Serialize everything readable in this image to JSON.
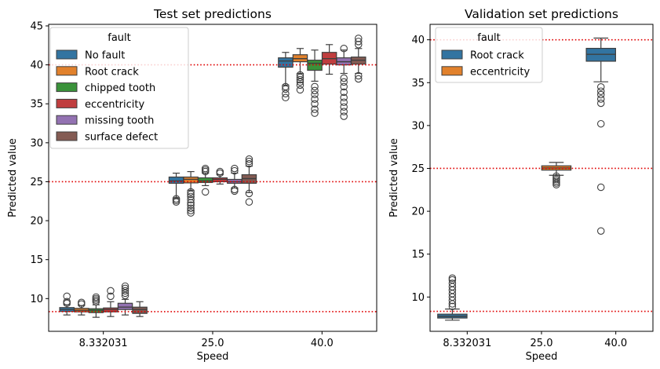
{
  "colors": {
    "No fault": "#3274a1",
    "Root crack": "#e1812c",
    "chipped tooth": "#3a923a",
    "eccentricity": "#c03d3e",
    "missing tooth": "#9372b2",
    "surface defect": "#845b53",
    "reference_line": "#e00000",
    "whisker": "#3f3f3f"
  },
  "chart_data": [
    {
      "type": "box",
      "title": "Test set predictions",
      "xlabel": "Speed",
      "ylabel": "Predicted value",
      "categories": [
        "8.332031",
        "25.0",
        "40.0"
      ],
      "ylim": [
        5.8,
        45.2
      ],
      "yticks": [
        10,
        15,
        20,
        25,
        30,
        35,
        40,
        45
      ],
      "reference_lines": [
        8.33,
        25.0,
        40.0
      ],
      "legend": {
        "title": "fault",
        "position": "top-left"
      },
      "series": [
        {
          "name": "No fault",
          "boxes": [
            {
              "whislo": 7.9,
              "q1": 8.35,
              "med": 8.6,
              "q3": 8.85,
              "whishi": 9.2,
              "fliers": [
                9.4,
                9.6,
                10.3
              ]
            },
            {
              "whislo": 22.9,
              "q1": 24.8,
              "med": 25.1,
              "q3": 25.6,
              "whishi": 26.1,
              "fliers": [
                22.4,
                22.6,
                22.8
              ]
            },
            {
              "whislo": 37.4,
              "q1": 39.7,
              "med": 40.5,
              "q3": 40.9,
              "whishi": 41.6,
              "fliers": [
                35.8,
                36.3,
                36.9,
                37.2
              ]
            }
          ]
        },
        {
          "name": "Root crack",
          "boxes": [
            {
              "whislo": 7.9,
              "q1": 8.3,
              "med": 8.5,
              "q3": 8.75,
              "whishi": 9.1,
              "fliers": [
                9.3,
                9.5
              ]
            },
            {
              "whislo": 23.9,
              "q1": 24.85,
              "med": 25.3,
              "q3": 25.6,
              "whishi": 26.3,
              "fliers": [
                21.0,
                21.3,
                21.6,
                22.0,
                22.3,
                22.7,
                23.1,
                23.4,
                23.7
              ]
            },
            {
              "whislo": 38.9,
              "q1": 40.4,
              "med": 40.8,
              "q3": 41.3,
              "whishi": 42.1,
              "fliers": [
                36.8,
                37.4,
                37.8,
                38.1,
                38.4,
                38.7
              ]
            }
          ]
        },
        {
          "name": "chipped tooth",
          "boxes": [
            {
              "whislo": 7.6,
              "q1": 8.2,
              "med": 8.5,
              "q3": 8.7,
              "whishi": 9.2,
              "fliers": [
                9.6,
                9.8,
                10.0,
                10.2
              ]
            },
            {
              "whislo": 24.5,
              "q1": 24.9,
              "med": 25.1,
              "q3": 25.5,
              "whishi": 26.1,
              "fliers": [
                23.7,
                26.3,
                26.5,
                26.7
              ]
            },
            {
              "whislo": 37.9,
              "q1": 39.3,
              "med": 40.2,
              "q3": 40.6,
              "whishi": 41.9,
              "fliers": [
                33.8,
                34.3,
                35.0,
                35.6,
                36.2,
                36.7,
                37.2
              ]
            }
          ]
        },
        {
          "name": "eccentricity",
          "boxes": [
            {
              "whislo": 7.7,
              "q1": 8.3,
              "med": 8.6,
              "q3": 8.8,
              "whishi": 9.6,
              "fliers": [
                10.3,
                11.0
              ]
            },
            {
              "whislo": 24.7,
              "q1": 25.0,
              "med": 25.3,
              "q3": 25.5,
              "whishi": 25.9,
              "fliers": [
                26.1,
                26.3
              ]
            },
            {
              "whislo": 38.8,
              "q1": 40.1,
              "med": 40.8,
              "q3": 41.6,
              "whishi": 42.6,
              "fliers": []
            }
          ]
        },
        {
          "name": "missing tooth",
          "boxes": [
            {
              "whislo": 7.9,
              "q1": 8.6,
              "med": 8.9,
              "q3": 9.4,
              "whishi": 9.9,
              "fliers": [
                10.4,
                10.7,
                11.0,
                11.3,
                11.6
              ]
            },
            {
              "whislo": 24.2,
              "q1": 24.8,
              "med": 25.0,
              "q3": 25.3,
              "whishi": 26.1,
              "fliers": [
                23.8,
                24.0,
                26.4,
                26.7
              ]
            },
            {
              "whislo": 38.9,
              "q1": 40.0,
              "med": 40.4,
              "q3": 40.9,
              "whishi": 41.9,
              "fliers": [
                33.4,
                34.0,
                34.6,
                35.2,
                35.8,
                36.5,
                37.2,
                37.8,
                38.3,
                42.1
              ]
            }
          ]
        },
        {
          "name": "surface defect",
          "boxes": [
            {
              "whislo": 7.7,
              "q1": 8.1,
              "med": 8.6,
              "q3": 8.9,
              "whishi": 9.6,
              "fliers": []
            },
            {
              "whislo": 23.6,
              "q1": 24.8,
              "med": 25.4,
              "q3": 25.9,
              "whishi": 27.0,
              "fliers": [
                22.4,
                23.5,
                27.3,
                27.6,
                27.9
              ]
            },
            {
              "whislo": 38.9,
              "q1": 40.1,
              "med": 40.6,
              "q3": 41.0,
              "whishi": 42.1,
              "fliers": [
                38.2,
                38.6,
                42.6,
                43.0,
                43.4
              ]
            }
          ]
        }
      ]
    },
    {
      "type": "box",
      "title": "Validation set predictions",
      "xlabel": "Speed",
      "ylabel": "Predicted value",
      "categories": [
        "8.332031",
        "25.0",
        "40.0"
      ],
      "ylim": [
        6.0,
        41.8
      ],
      "yticks": [
        10,
        15,
        20,
        25,
        30,
        35,
        40
      ],
      "reference_lines": [
        8.33,
        25.0,
        40.0
      ],
      "legend": {
        "title": "fault",
        "position": "top-left"
      },
      "series": [
        {
          "name": "Root crack",
          "colorKey": "No fault",
          "boxes": [
            {
              "category": 0,
              "whislo": 7.3,
              "q1": 7.55,
              "med": 7.75,
              "q3": 8.0,
              "whishi": 8.6,
              "fliers": [
                8.9,
                9.2,
                9.6,
                10.0,
                10.4,
                10.8,
                11.2,
                11.6,
                12.0,
                12.2
              ]
            },
            {
              "category": 2,
              "whislo": 35.1,
              "q1": 37.5,
              "med": 38.3,
              "q3": 39.0,
              "whishi": 40.2,
              "fliers": [
                17.7,
                22.8,
                30.2,
                32.6,
                33.1,
                33.6,
                34.0,
                34.5
              ]
            }
          ]
        },
        {
          "name": "eccentricity",
          "colorKey": "Root crack",
          "boxes": [
            {
              "category": 1,
              "whislo": 24.2,
              "q1": 24.8,
              "med": 25.05,
              "q3": 25.3,
              "whishi": 25.7,
              "fliers": [
                23.1,
                23.3,
                23.5,
                23.7,
                23.9,
                24.1
              ]
            }
          ]
        }
      ]
    }
  ]
}
